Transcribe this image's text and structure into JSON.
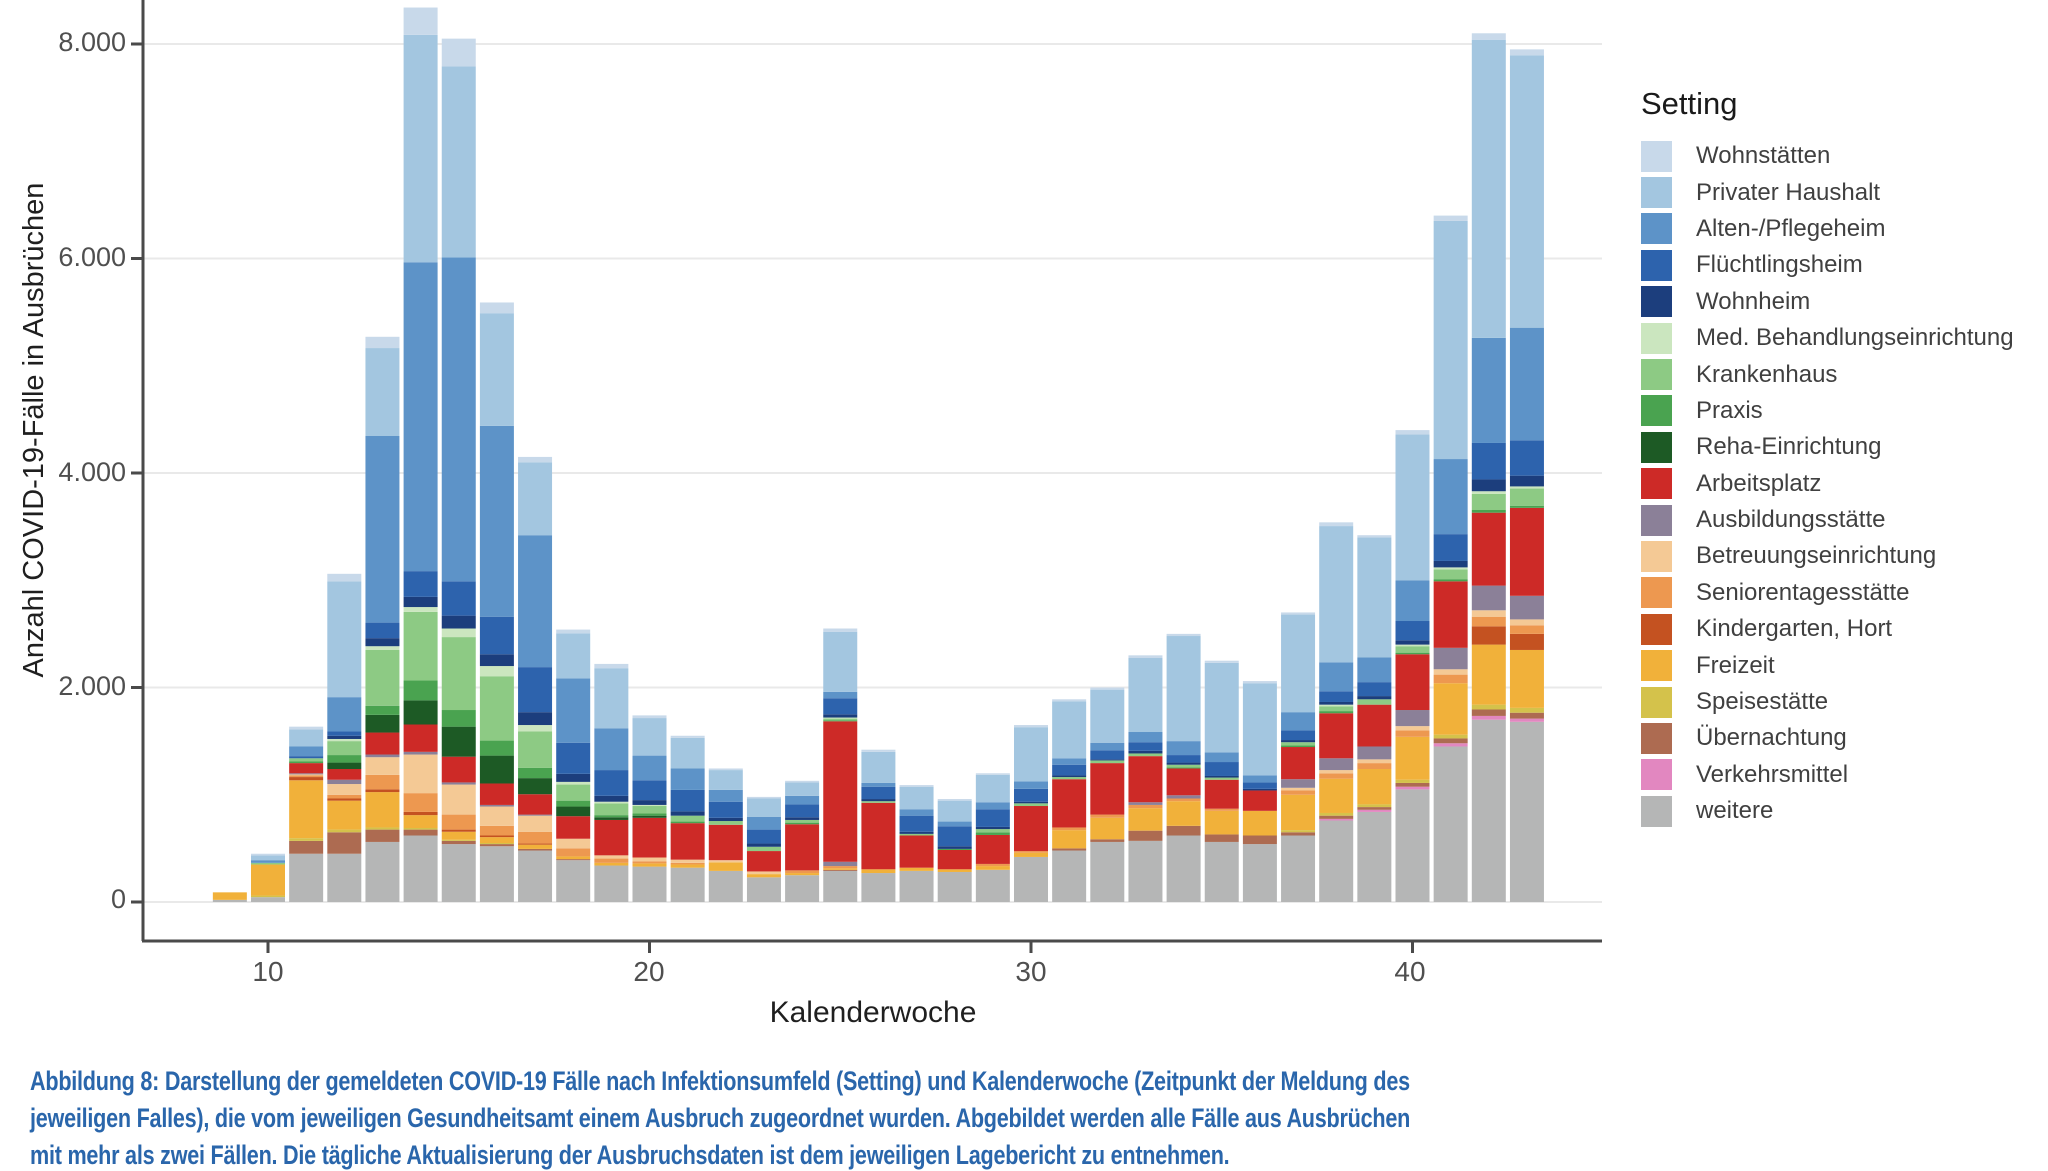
{
  "figure": {
    "background": "#ffffff",
    "panel_border_color": "#4a4a4a",
    "gridline_color": "#e9e9e9"
  },
  "chart": {
    "y_axis": {
      "title": "Anzahl COVID-19-Fälle in Ausbrüchen",
      "tick_labels": [
        "0",
        "2.000",
        "4.000",
        "6.000",
        "8.000"
      ],
      "tick_values": [
        0,
        2000,
        4000,
        6000,
        8000
      ]
    },
    "x_axis": {
      "title": "Kalenderwoche",
      "tick_labels": [
        "10",
        "20",
        "30",
        "40"
      ],
      "tick_values": [
        10,
        20,
        30,
        40
      ]
    },
    "legend": {
      "title": "Setting",
      "position": "right"
    }
  },
  "chart_data": {
    "type": "bar",
    "stacked": true,
    "xlabel": "Kalenderwoche",
    "ylabel": "Anzahl COVID-19-Fälle in Ausbrüchen",
    "legend_title": "Setting",
    "legend_position": "right",
    "grid": "horizontal-major",
    "ylim": [
      0,
      8500
    ],
    "x": [
      9,
      10,
      11,
      12,
      13,
      14,
      15,
      16,
      17,
      18,
      19,
      20,
      21,
      22,
      23,
      24,
      25,
      26,
      27,
      28,
      29,
      30,
      31,
      32,
      33,
      34,
      35,
      36,
      37,
      38,
      39,
      40,
      41,
      42,
      43
    ],
    "series": [
      {
        "name": "Wohnstätten",
        "color": "#c8d9ea",
        "values": [
          0,
          15,
          25,
          70,
          105,
          255,
          260,
          100,
          50,
          35,
          40,
          25,
          20,
          15,
          15,
          15,
          30,
          20,
          15,
          15,
          15,
          20,
          20,
          20,
          25,
          20,
          20,
          20,
          20,
          35,
          20,
          40,
          50,
          60,
          55
        ]
      },
      {
        "name": "Privater Haushalt",
        "color": "#a3c6e0",
        "values": [
          0,
          45,
          160,
          1080,
          820,
          2120,
          1780,
          1050,
          680,
          420,
          560,
          350,
          285,
          185,
          170,
          125,
          560,
          290,
          210,
          195,
          255,
          505,
          530,
          495,
          690,
          980,
          835,
          860,
          910,
          1270,
          1120,
          1360,
          2220,
          2780,
          2540
        ]
      },
      {
        "name": "Alten-/Pflegeheim",
        "color": "#5d93c8",
        "values": [
          0,
          25,
          90,
          320,
          1740,
          2880,
          3020,
          1780,
          1230,
          600,
          390,
          230,
          200,
          110,
          120,
          80,
          60,
          35,
          60,
          45,
          65,
          70,
          60,
          70,
          95,
          130,
          90,
          65,
          170,
          270,
          230,
          380,
          700,
          980,
          1050
        ]
      },
      {
        "name": "Flüchtlingsheim",
        "color": "#2d63ad",
        "values": [
          0,
          0,
          20,
          40,
          145,
          240,
          320,
          350,
          420,
          290,
          240,
          185,
          200,
          150,
          130,
          120,
          150,
          115,
          150,
          185,
          165,
          120,
          100,
          85,
          80,
          70,
          130,
          60,
          90,
          100,
          130,
          180,
          250,
          340,
          330
        ]
      },
      {
        "name": "Wohnheim",
        "color": "#1c3e7d",
        "values": [
          0,
          0,
          0,
          30,
          75,
          95,
          120,
          110,
          120,
          75,
          55,
          45,
          40,
          30,
          30,
          25,
          30,
          20,
          20,
          25,
          20,
          15,
          15,
          10,
          25,
          20,
          15,
          15,
          20,
          25,
          30,
          40,
          60,
          110,
          100
        ]
      },
      {
        "name": "Med. Behandlungseinrichtung",
        "color": "#cbe6bf",
        "values": [
          0,
          0,
          0,
          20,
          35,
          45,
          80,
          95,
          60,
          25,
          15,
          10,
          0,
          0,
          0,
          0,
          10,
          0,
          0,
          0,
          0,
          0,
          0,
          0,
          0,
          0,
          0,
          0,
          0,
          15,
          0,
          15,
          20,
          25,
          20
        ]
      },
      {
        "name": "Krankenhaus",
        "color": "#8dca84",
        "values": [
          0,
          15,
          30,
          130,
          520,
          640,
          680,
          600,
          340,
          150,
          110,
          70,
          55,
          35,
          40,
          25,
          15,
          15,
          15,
          0,
          30,
          25,
          20,
          25,
          25,
          25,
          20,
          0,
          30,
          45,
          50,
          60,
          90,
          150,
          160
        ]
      },
      {
        "name": "Praxis",
        "color": "#4aa350",
        "values": [
          0,
          0,
          15,
          70,
          85,
          185,
          155,
          140,
          95,
          55,
          20,
          20,
          15,
          0,
          0,
          15,
          10,
          0,
          0,
          10,
          25,
          0,
          0,
          0,
          0,
          10,
          0,
          0,
          15,
          20,
          0,
          15,
          20,
          25,
          20
        ]
      },
      {
        "name": "Reha-Einrichtung",
        "color": "#1d5a25",
        "values": [
          0,
          0,
          0,
          60,
          165,
          225,
          280,
          260,
          150,
          90,
          25,
          20,
          0,
          0,
          0,
          0,
          0,
          0,
          0,
          0,
          0,
          0,
          0,
          0,
          0,
          0,
          0,
          0,
          0,
          0,
          0,
          0,
          0,
          0,
          0
        ]
      },
      {
        "name": "Arbeitsplatz",
        "color": "#cd2a27",
        "values": [
          0,
          0,
          95,
          100,
          205,
          255,
          240,
          200,
          190,
          210,
          330,
          370,
          340,
          330,
          190,
          430,
          1310,
          620,
          300,
          180,
          270,
          420,
          450,
          480,
          430,
          250,
          270,
          190,
          300,
          420,
          390,
          520,
          620,
          680,
          820
        ]
      },
      {
        "name": "Ausbildungsstätte",
        "color": "#8b8098",
        "values": [
          0,
          0,
          10,
          40,
          25,
          25,
          20,
          15,
          10,
          0,
          0,
          0,
          0,
          0,
          0,
          0,
          40,
          0,
          0,
          0,
          0,
          0,
          0,
          0,
          25,
          30,
          0,
          0,
          80,
          110,
          120,
          150,
          200,
          230,
          220
        ]
      },
      {
        "name": "Betreuungseinrichtung",
        "color": "#f4c995",
        "values": [
          0,
          0,
          10,
          100,
          165,
          360,
          280,
          180,
          150,
          90,
          30,
          35,
          30,
          20,
          25,
          0,
          0,
          0,
          0,
          0,
          0,
          0,
          0,
          0,
          0,
          0,
          0,
          0,
          25,
          30,
          35,
          40,
          50,
          60,
          55
        ]
      },
      {
        "name": "Seniorentagesstätte",
        "color": "#ed9850",
        "values": [
          0,
          0,
          15,
          35,
          135,
          175,
          140,
          90,
          110,
          75,
          40,
          20,
          15,
          0,
          0,
          25,
          20,
          0,
          0,
          0,
          20,
          15,
          25,
          30,
          30,
          25,
          20,
          0,
          40,
          50,
          55,
          60,
          80,
          90,
          80
        ]
      },
      {
        "name": "Kindergarten, Hort",
        "color": "#c45221",
        "values": [
          0,
          0,
          30,
          20,
          25,
          30,
          20,
          15,
          10,
          0,
          0,
          0,
          0,
          0,
          0,
          0,
          0,
          0,
          0,
          0,
          0,
          0,
          0,
          0,
          0,
          0,
          0,
          0,
          0,
          0,
          0,
          0,
          0,
          170,
          150
        ]
      },
      {
        "name": "Freizeit",
        "color": "#f1b13a",
        "values": [
          70,
          290,
          540,
          270,
          330,
          120,
          75,
          55,
          40,
          25,
          25,
          30,
          30,
          80,
          30,
          20,
          15,
          35,
          30,
          25,
          35,
          40,
          170,
          200,
          210,
          230,
          220,
          230,
          330,
          320,
          330,
          400,
          480,
          560,
          540
        ]
      },
      {
        "name": "Speisestätte",
        "color": "#d4c24b",
        "values": [
          0,
          15,
          25,
          25,
          20,
          15,
          10,
          10,
          0,
          0,
          0,
          0,
          0,
          0,
          0,
          0,
          0,
          0,
          0,
          0,
          0,
          0,
          0,
          0,
          0,
          0,
          0,
          0,
          20,
          25,
          25,
          30,
          35,
          45,
          45
        ]
      },
      {
        "name": "Übernachtung",
        "color": "#ad6b51",
        "values": [
          0,
          0,
          120,
          200,
          115,
          55,
          30,
          20,
          15,
          10,
          0,
          0,
          0,
          0,
          0,
          0,
          10,
          0,
          0,
          0,
          0,
          0,
          20,
          25,
          95,
          90,
          70,
          80,
          30,
          30,
          25,
          35,
          45,
          60,
          55
        ]
      },
      {
        "name": "Verkehrsmittel",
        "color": "#e287c0",
        "values": [
          0,
          0,
          0,
          0,
          0,
          0,
          0,
          0,
          0,
          0,
          0,
          0,
          0,
          0,
          0,
          0,
          0,
          0,
          0,
          0,
          0,
          0,
          0,
          0,
          0,
          0,
          0,
          0,
          0,
          15,
          20,
          25,
          30,
          35,
          30
        ]
      },
      {
        "name": "weitere",
        "color": "#b5b6b6",
        "values": [
          20,
          45,
          450,
          450,
          560,
          620,
          540,
          520,
          480,
          390,
          340,
          330,
          320,
          290,
          230,
          250,
          290,
          270,
          290,
          280,
          300,
          420,
          480,
          560,
          570,
          620,
          560,
          540,
          620,
          760,
          840,
          1050,
          1450,
          1700,
          1680
        ]
      }
    ]
  },
  "caption": {
    "lines": [
      "Abbildung 8: Darstellung der gemeldeten COVID-19 Fälle nach Infektionsumfeld (Setting) und Kalenderwoche (Zeitpunkt der Meldung des",
      "jeweiligen Falles), die vom jeweiligen Gesundheitsamt einem Ausbruch zugeordnet wurden. Abgebildet werden alle Fälle aus Ausbrüchen",
      "mit mehr als zwei Fällen. Die tägliche Aktualisierung der Ausbruchsdaten ist dem jeweiligen Lagebericht zu entnehmen."
    ]
  }
}
